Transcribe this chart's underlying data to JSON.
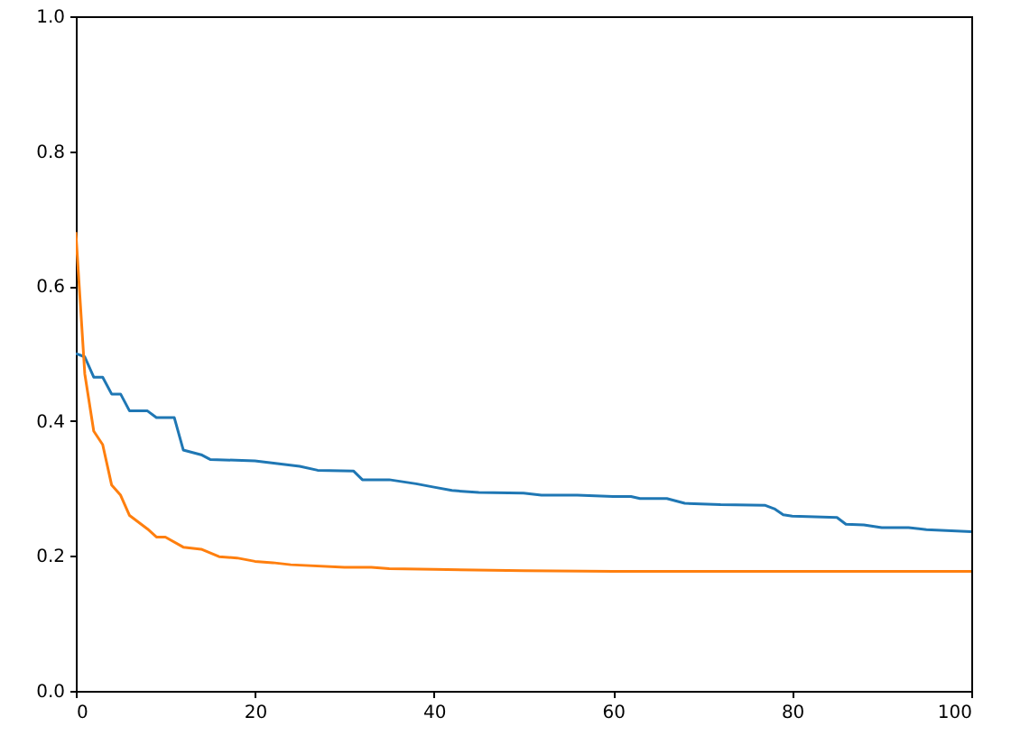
{
  "chart_data": {
    "type": "line",
    "xlim": [
      0,
      100
    ],
    "ylim": [
      0,
      1
    ],
    "xticks": [
      0,
      20,
      40,
      60,
      80,
      100
    ],
    "yticks": [
      {
        "value": 0,
        "label": "0.0"
      },
      {
        "value": 0.2,
        "label": "0.2"
      },
      {
        "value": 0.4,
        "label": "0.4"
      },
      {
        "value": 0.6,
        "label": "0.6"
      },
      {
        "value": 0.8,
        "label": "0.8"
      },
      {
        "value": 1,
        "label": "1.0"
      }
    ],
    "grid": false,
    "series": [
      {
        "color": "#1f77b4",
        "x": [
          0,
          1,
          2,
          3,
          4,
          5,
          6,
          8,
          9,
          11,
          12,
          14,
          15,
          20,
          25,
          27,
          31,
          32,
          35,
          38,
          40,
          42,
          45,
          50,
          52,
          56,
          60,
          62,
          63,
          66,
          68,
          72,
          77,
          78,
          79,
          80,
          85,
          86,
          88,
          90,
          93,
          95,
          100
        ],
        "values": [
          0.5,
          0.495,
          0.465,
          0.465,
          0.44,
          0.44,
          0.415,
          0.415,
          0.405,
          0.405,
          0.357,
          0.35,
          0.343,
          0.341,
          0.333,
          0.327,
          0.326,
          0.313,
          0.313,
          0.307,
          0.302,
          0.297,
          0.294,
          0.293,
          0.29,
          0.29,
          0.288,
          0.288,
          0.285,
          0.285,
          0.278,
          0.276,
          0.275,
          0.27,
          0.261,
          0.259,
          0.257,
          0.247,
          0.246,
          0.242,
          0.242,
          0.239,
          0.236
        ]
      },
      {
        "color": "#ff7f0e",
        "x": [
          0,
          1,
          2,
          3,
          4,
          5,
          6,
          8,
          9,
          10,
          12,
          14,
          16,
          18,
          20,
          22,
          24,
          30,
          33,
          35,
          40,
          50,
          60,
          100
        ],
        "values": [
          0.68,
          0.47,
          0.385,
          0.365,
          0.305,
          0.29,
          0.26,
          0.24,
          0.228,
          0.228,
          0.213,
          0.21,
          0.199,
          0.197,
          0.192,
          0.19,
          0.187,
          0.183,
          0.183,
          0.181,
          0.18,
          0.178,
          0.177,
          0.177
        ]
      }
    ]
  }
}
